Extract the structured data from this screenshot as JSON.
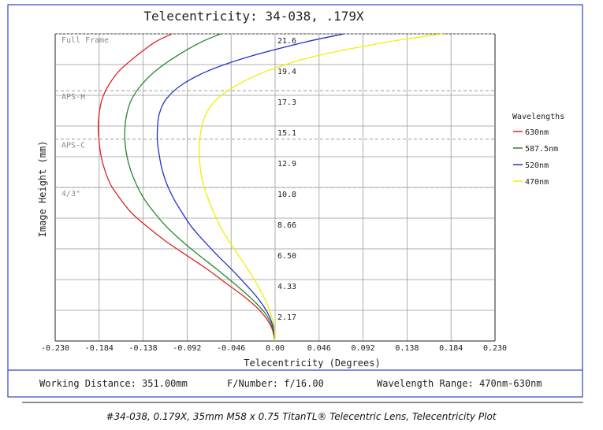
{
  "chart_data": {
    "type": "line",
    "title": "Telecentricity: 34-038, .179X",
    "xlabel": "Telecentricity (Degrees)",
    "ylabel": "Image Height (mm)",
    "xlim": [
      -0.23,
      0.23
    ],
    "ylim": [
      0,
      21.6
    ],
    "x_ticks": [
      "-0.230",
      "-0.184",
      "-0.138",
      "-0.092",
      "-0.046",
      "0.00",
      "0.046",
      "0.092",
      "0.138",
      "0.184",
      "0.230"
    ],
    "y_ticks": [
      "2.17",
      "4.33",
      "6.50",
      "8.66",
      "10.8",
      "12.9",
      "15.1",
      "17.3",
      "19.4",
      "21.6"
    ],
    "grid": true,
    "legend_title": "Wavelengths",
    "legend_position": "right",
    "sensor_markers": [
      {
        "label": "Full Frame",
        "y": 21.6
      },
      {
        "label": "APS-H",
        "y": 17.6
      },
      {
        "label": "APS-C",
        "y": 14.2
      },
      {
        "label": "4/3\"",
        "y": 10.8
      }
    ],
    "series": [
      {
        "name": "630nm",
        "color": "#dd2222",
        "points": [
          [
            0,
            0
          ],
          [
            -0.004,
            1
          ],
          [
            -0.014,
            2
          ],
          [
            -0.03,
            3
          ],
          [
            -0.05,
            4
          ],
          [
            -0.07,
            5
          ],
          [
            -0.092,
            6
          ],
          [
            -0.114,
            7
          ],
          [
            -0.133,
            8
          ],
          [
            -0.15,
            9
          ],
          [
            -0.162,
            10
          ],
          [
            -0.172,
            11
          ],
          [
            -0.178,
            12
          ],
          [
            -0.182,
            13
          ],
          [
            -0.184,
            14
          ],
          [
            -0.185,
            15
          ],
          [
            -0.184,
            16
          ],
          [
            -0.181,
            17
          ],
          [
            -0.174,
            18
          ],
          [
            -0.163,
            19
          ],
          [
            -0.146,
            20
          ],
          [
            -0.126,
            21
          ],
          [
            -0.108,
            21.6
          ]
        ]
      },
      {
        "name": "587.5nm",
        "color": "#22882a",
        "points": [
          [
            0,
            0
          ],
          [
            -0.003,
            1
          ],
          [
            -0.011,
            2
          ],
          [
            -0.025,
            3
          ],
          [
            -0.042,
            4
          ],
          [
            -0.06,
            5
          ],
          [
            -0.079,
            6
          ],
          [
            -0.097,
            7
          ],
          [
            -0.113,
            8
          ],
          [
            -0.126,
            9
          ],
          [
            -0.137,
            10
          ],
          [
            -0.145,
            11
          ],
          [
            -0.151,
            12
          ],
          [
            -0.155,
            13
          ],
          [
            -0.157,
            14
          ],
          [
            -0.157,
            15
          ],
          [
            -0.155,
            16
          ],
          [
            -0.15,
            17
          ],
          [
            -0.14,
            18
          ],
          [
            -0.125,
            19
          ],
          [
            -0.104,
            20
          ],
          [
            -0.078,
            21
          ],
          [
            -0.057,
            21.6
          ]
        ]
      },
      {
        "name": "520nm",
        "color": "#2233cc",
        "points": [
          [
            0,
            0
          ],
          [
            -0.002,
            1
          ],
          [
            -0.008,
            2
          ],
          [
            -0.018,
            3
          ],
          [
            -0.031,
            4
          ],
          [
            -0.045,
            5
          ],
          [
            -0.06,
            6
          ],
          [
            -0.074,
            7
          ],
          [
            -0.087,
            8
          ],
          [
            -0.097,
            9
          ],
          [
            -0.106,
            10
          ],
          [
            -0.113,
            11
          ],
          [
            -0.118,
            12
          ],
          [
            -0.121,
            13
          ],
          [
            -0.123,
            14
          ],
          [
            -0.123,
            15
          ],
          [
            -0.121,
            16
          ],
          [
            -0.114,
            17
          ],
          [
            -0.098,
            18
          ],
          [
            -0.07,
            19
          ],
          [
            -0.027,
            20
          ],
          [
            0.03,
            21
          ],
          [
            0.072,
            21.6
          ]
        ]
      },
      {
        "name": "470nm",
        "color": "#f0f000",
        "points": [
          [
            0,
            0
          ],
          [
            -0.001,
            1
          ],
          [
            -0.005,
            2
          ],
          [
            -0.011,
            3
          ],
          [
            -0.019,
            4
          ],
          [
            -0.028,
            5
          ],
          [
            -0.038,
            6
          ],
          [
            -0.048,
            7
          ],
          [
            -0.057,
            8
          ],
          [
            -0.064,
            9
          ],
          [
            -0.07,
            10
          ],
          [
            -0.075,
            11
          ],
          [
            -0.078,
            12
          ],
          [
            -0.079,
            13
          ],
          [
            -0.079,
            14
          ],
          [
            -0.077,
            15
          ],
          [
            -0.072,
            16
          ],
          [
            -0.061,
            17
          ],
          [
            -0.04,
            18
          ],
          [
            -0.008,
            19
          ],
          [
            0.04,
            20
          ],
          [
            0.115,
            21
          ],
          [
            0.175,
            21.6
          ]
        ]
      }
    ]
  },
  "footer": {
    "working_distance": "Working Distance: 351.00mm",
    "f_number": "F/Number: f/16.00",
    "wavelength_range": "Wavelength Range: 470nm-630nm"
  },
  "caption": "#34-038, 0.179X, 35mm M58 x 0.75 TitanTL® Telecentric Lens, Telecentricity Plot",
  "colors": {
    "border": "#3344cc",
    "grid": "#999999",
    "dashed_marker": "#999999"
  }
}
